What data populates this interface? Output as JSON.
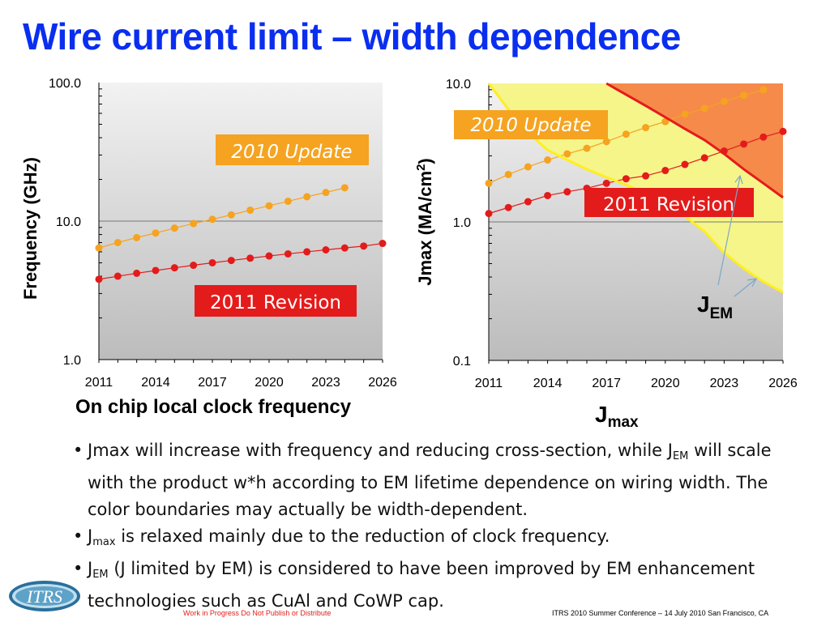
{
  "title": "Wire current limit – width dependence",
  "chart_data": [
    {
      "type": "line",
      "x": [
        2011,
        2012,
        2013,
        2014,
        2015,
        2016,
        2017,
        2018,
        2019,
        2020,
        2021,
        2022,
        2023,
        2024,
        2025,
        2026
      ],
      "xticks": [
        "2011",
        "2014",
        "2017",
        "2020",
        "2023",
        "2026"
      ],
      "yticks": [
        "1.0",
        "10.0",
        "100.0"
      ],
      "ylabel": "Frequency (GHz)",
      "xlabel": "On chip local clock frequency",
      "yscale": "log",
      "ylim": [
        1,
        100
      ],
      "xlim": [
        2011,
        2026
      ],
      "series": [
        {
          "name": "2010 Update",
          "color": "#f5a320",
          "values": [
            6.4,
            7.0,
            7.6,
            8.2,
            8.9,
            9.6,
            10.3,
            11.1,
            12.0,
            12.9,
            13.9,
            15.0,
            16.1,
            17.4,
            null,
            null
          ]
        },
        {
          "name": "2011 Revision",
          "color": "#e41b1b",
          "values": [
            3.8,
            4.0,
            4.2,
            4.4,
            4.6,
            4.8,
            5.0,
            5.2,
            5.4,
            5.6,
            5.8,
            6.0,
            6.2,
            6.4,
            6.6,
            6.9
          ]
        }
      ],
      "annotations": [
        "2010 Update",
        "2011 Revision"
      ]
    },
    {
      "type": "line",
      "x": [
        2011,
        2012,
        2013,
        2014,
        2015,
        2016,
        2017,
        2018,
        2019,
        2020,
        2021,
        2022,
        2023,
        2024,
        2025,
        2026
      ],
      "xticks": [
        "2011",
        "2014",
        "2017",
        "2020",
        "2023",
        "2026"
      ],
      "yticks": [
        "0.1",
        "1.0",
        "10.0"
      ],
      "ylabel": "Jmax (MA/cm2)",
      "xlabel": "Jmax",
      "yscale": "log",
      "ylim": [
        0.1,
        10
      ],
      "xlim": [
        2011,
        2026
      ],
      "series": [
        {
          "name": "2010 Update",
          "color": "#f5a320",
          "values": [
            1.9,
            2.2,
            2.5,
            2.8,
            3.1,
            3.4,
            3.8,
            4.3,
            4.8,
            5.3,
            6.0,
            6.6,
            7.4,
            8.2,
            9.0,
            null
          ]
        },
        {
          "name": "2011 Revision",
          "color": "#e41b1b",
          "values": [
            1.15,
            1.27,
            1.4,
            1.55,
            1.65,
            1.75,
            1.9,
            2.05,
            2.15,
            2.35,
            2.6,
            2.9,
            3.25,
            3.65,
            4.1,
            4.5
          ]
        },
        {
          "name": "JEM boundary (red)",
          "color": "#e41b1b",
          "values": [
            null,
            null,
            null,
            null,
            null,
            null,
            10.0,
            8.3,
            6.9,
            5.7,
            4.7,
            3.9,
            3.1,
            2.4,
            1.9,
            1.5
          ]
        },
        {
          "name": "JEM boundary (yellow)",
          "color": "#ffee22",
          "values": [
            10.0,
            6.5,
            4.4,
            3.3,
            2.8,
            2.4,
            2.1,
            1.85,
            1.6,
            1.35,
            1.1,
            0.85,
            0.6,
            0.46,
            0.37,
            0.31
          ]
        }
      ],
      "annotations": [
        "2010 Update",
        "2011 Revision",
        "JEM"
      ]
    }
  ],
  "captions": {
    "left": "On chip local clock frequency",
    "right_main": "J",
    "right_sub": "max"
  },
  "bullets": [
    {
      "dot": "•",
      "pre": "Jmax will increase with frequency and reducing cross-section, while J",
      "sub": "EM",
      "post": " will scale with the product w*h according to EM lifetime dependence on wiring width.  The color boundaries may actually be width-dependent."
    },
    {
      "dot": "•",
      "pre": "J",
      "sub": "max",
      "post": " is relaxed mainly due to the reduction of clock frequency."
    },
    {
      "dot": "•",
      "pre": "J",
      "sub": "EM",
      "post": " (J limited by EM) is considered to have been improved by EM enhancement technologies such as CuAl and CoWP cap."
    }
  ],
  "footer": {
    "center": "Work in Progress   Do Not Publish or Distribute",
    "right": "ITRS 2010 Summer Conference – 14 July 2010 San Francisco, CA",
    "logo_text": "ITRS"
  },
  "colors": {
    "title": "#0a2ef0",
    "update_label_bg": "#f5a320",
    "revision_label_bg": "#e41b1b",
    "red_zone": "#f58a4a",
    "yellow_zone": "#f5f58a"
  }
}
